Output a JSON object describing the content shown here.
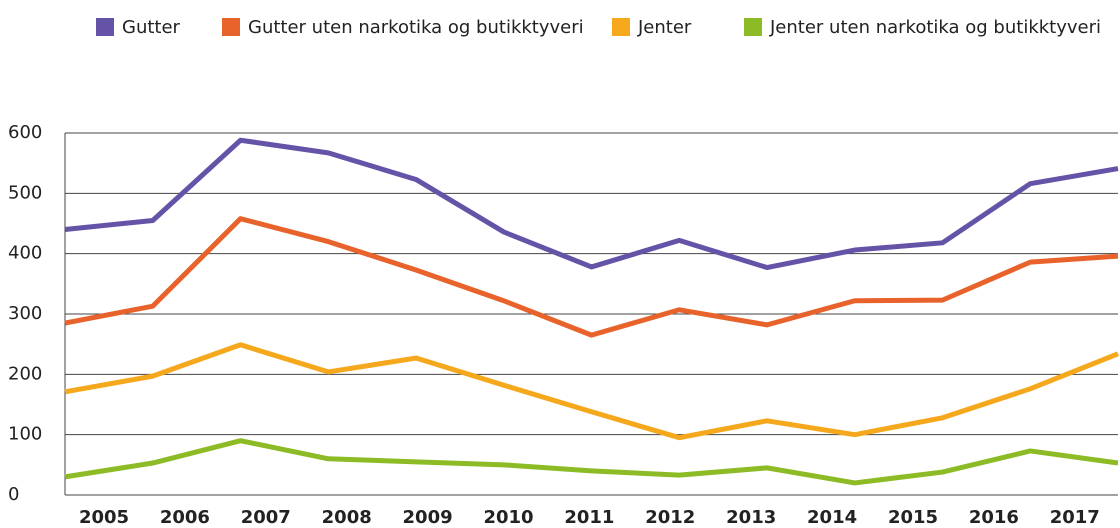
{
  "chart_data": {
    "type": "line",
    "categories": [
      "2005",
      "2006",
      "2007",
      "2008",
      "2009",
      "2010",
      "2011",
      "2012",
      "2013",
      "2014",
      "2015",
      "2016",
      "2017"
    ],
    "series": [
      {
        "name": "Gutter",
        "color": "#6553a8",
        "values": [
          440,
          455,
          588,
          567,
          523,
          436,
          378,
          422,
          377,
          406,
          418,
          516,
          541
        ]
      },
      {
        "name": "Gutter uten narkotika og butikktyveri",
        "color": "#e8632b",
        "values": [
          285,
          313,
          458,
          420,
          373,
          322,
          265,
          307,
          282,
          322,
          323,
          386,
          396
        ]
      },
      {
        "name": "Jenter",
        "color": "#f5a81c",
        "values": [
          171,
          197,
          249,
          204,
          227,
          182,
          138,
          95,
          123,
          100,
          128,
          176,
          234
        ]
      },
      {
        "name": "Jenter uten narkotika og butikktyveri",
        "color": "#8cbb26",
        "values": [
          30,
          53,
          90,
          60,
          55,
          50,
          40,
          33,
          45,
          20,
          38,
          73,
          53
        ]
      }
    ],
    "ylim": [
      0,
      600
    ],
    "yticks": [
      0,
      100,
      200,
      300,
      400,
      500,
      600
    ],
    "grid": true
  }
}
